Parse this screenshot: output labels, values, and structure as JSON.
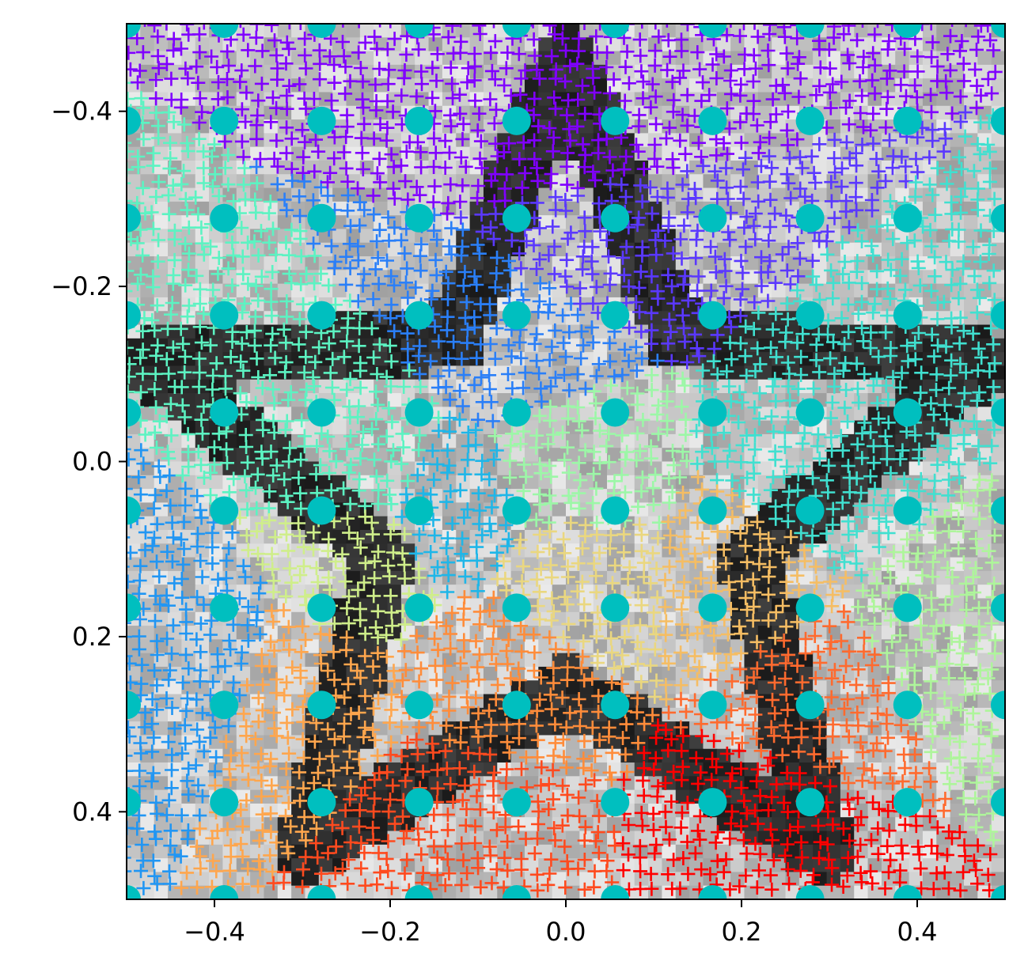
{
  "chart_data": {
    "type": "scatter",
    "title": "",
    "xlabel": "",
    "ylabel": "",
    "xlim": [
      -0.5,
      0.5
    ],
    "ylim": [
      0.5,
      -0.5
    ],
    "y_axis_inverted": true,
    "grid": false,
    "legend": "none",
    "x_ticks": [
      {
        "value": -0.4,
        "label": "−0.4"
      },
      {
        "value": -0.2,
        "label": "−0.2"
      },
      {
        "value": 0.0,
        "label": "0.0"
      },
      {
        "value": 0.2,
        "label": "0.2"
      },
      {
        "value": 0.4,
        "label": "0.4"
      }
    ],
    "y_ticks": [
      {
        "value": -0.4,
        "label": "−0.4"
      },
      {
        "value": -0.2,
        "label": "−0.2"
      },
      {
        "value": 0.0,
        "label": "0.0"
      },
      {
        "value": 0.2,
        "label": "0.2"
      },
      {
        "value": 0.4,
        "label": "0.4"
      }
    ],
    "background_image": {
      "description_kind": "grayscale pixel grid",
      "grid_size": 64,
      "shape": "five-pointed star outline",
      "star_outer_radius": 0.5,
      "star_inner_radius": 0.22,
      "star_center": [
        0.0,
        0.04
      ],
      "star_fill": "#2e2e2e",
      "background_gray_range": [
        0.62,
        0.92
      ]
    },
    "series": [
      {
        "marker": "circle",
        "color": "#00bfbf",
        "grid_x": [
          -0.5,
          -0.389,
          -0.278,
          -0.167,
          -0.056,
          0.056,
          0.167,
          0.278,
          0.389,
          0.5
        ],
        "grid_y": [
          -0.5,
          -0.389,
          -0.278,
          -0.167,
          -0.056,
          0.056,
          0.167,
          0.278,
          0.389,
          0.5
        ],
        "offset_rows_x": [
          -0.5,
          -0.389,
          -0.278,
          -0.167,
          -0.056,
          0.056,
          0.167,
          0.278,
          0.389,
          0.5
        ]
      },
      {
        "marker": "plus",
        "colormap": "rainbow",
        "grid_step": 0.0167,
        "clusters": [
          {
            "color": "#8000ff",
            "center": [
              0.0,
              -0.36
            ]
          },
          {
            "color": "#5a38ff",
            "center": [
              0.02,
              -0.26
            ]
          },
          {
            "color": "#2a7ff8",
            "center": [
              -0.06,
              -0.14
            ]
          },
          {
            "color": "#2196f3",
            "center": [
              -0.42,
              0.22
            ]
          },
          {
            "color": "#1fb6e8",
            "center": [
              -0.12,
              0.06
            ]
          },
          {
            "color": "#40e0d0",
            "center": [
              0.28,
              0.04
            ]
          },
          {
            "color": "#5cf3c2",
            "center": [
              -0.24,
              0.0
            ]
          },
          {
            "color": "#9cf7a7",
            "center": [
              0.0,
              0.02
            ]
          },
          {
            "color": "#aef59b",
            "center": [
              0.42,
              0.2
            ]
          },
          {
            "color": "#cfee8a",
            "center": [
              -0.24,
              0.12
            ]
          },
          {
            "color": "#ead77f",
            "center": [
              0.0,
              0.12
            ]
          },
          {
            "color": "#f5bd63",
            "center": [
              0.22,
              0.12
            ]
          },
          {
            "color": "#ffa64d",
            "center": [
              -0.3,
              0.26
            ]
          },
          {
            "color": "#ff8c3a",
            "center": [
              -0.08,
              0.24
            ]
          },
          {
            "color": "#ff6a2e",
            "center": [
              0.3,
              0.26
            ]
          },
          {
            "color": "#ff4a1e",
            "center": [
              -0.12,
              0.42
            ]
          },
          {
            "color": "#ff0000",
            "center": [
              0.24,
              0.44
            ]
          }
        ]
      }
    ]
  }
}
